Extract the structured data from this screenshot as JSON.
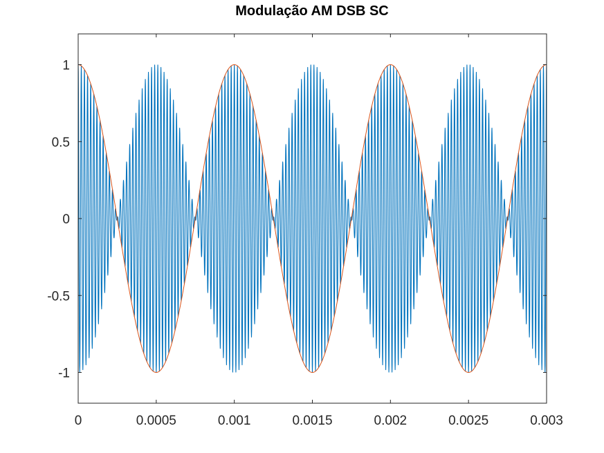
{
  "chart_data": {
    "type": "line",
    "title": "Modulação AM DSB SC",
    "xlabel": "",
    "ylabel": "",
    "xlim": [
      0,
      0.003
    ],
    "ylim": [
      -1.2,
      1.2
    ],
    "x_ticks": [
      0,
      0.0005,
      0.001,
      0.0015,
      0.002,
      0.0025,
      0.003
    ],
    "x_tick_labels": [
      "0",
      "0.0005",
      "0.001",
      "0.0015",
      "0.002",
      "0.0025",
      "0.003"
    ],
    "y_ticks": [
      -1,
      -0.5,
      0,
      0.5,
      1
    ],
    "y_tick_labels": [
      "-1",
      "-0.5",
      "0",
      "0.5",
      "1"
    ],
    "grid": false,
    "legend": "none",
    "series": [
      {
        "kind": "modulated-signal",
        "color": "#0072bd",
        "formula": "cos(2*pi*1000*t)*cos(2*pi*50000*t)",
        "t_start": 0,
        "t_end": 0.003,
        "t_step": 1e-06,
        "message_frequency_hz": 1000,
        "carrier_frequency_hz": 50000,
        "amplitude": 1
      },
      {
        "kind": "message-envelope",
        "color": "#d95319",
        "formula": "cos(2*pi*1000*t)",
        "t_start": 0,
        "t_end": 0.003,
        "t_step": 1e-06,
        "message_frequency_hz": 1000,
        "amplitude": 1
      }
    ]
  }
}
